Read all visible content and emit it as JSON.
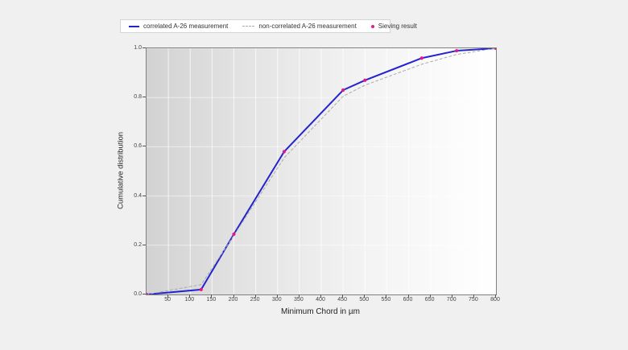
{
  "colors": {
    "page_background": "#f0f0f0",
    "correlated_line": "#2323cf",
    "non_correlated_line": "#aaaaaa",
    "sieving_dot": "#e8168c",
    "plot_border": "#7f7f7f",
    "gridline": "#ffffff"
  },
  "legend": {
    "items": [
      {
        "label": "correlated A-26 measurement",
        "marker": "solid-line",
        "color": "#2323cf"
      },
      {
        "label": "non-correlated A-26 measurement",
        "marker": "dashed-line",
        "color": "#aaaaaa"
      },
      {
        "label": "Sieving result",
        "marker": "dot",
        "color": "#e8168c"
      }
    ]
  },
  "chart_data": {
    "type": "line",
    "title": "",
    "xlabel": "Minimum Chord in µm",
    "ylabel": "Cumulative distribution",
    "xlim": [
      0,
      800
    ],
    "ylim": [
      0,
      1.0
    ],
    "x_ticks": [
      50,
      100,
      150,
      200,
      250,
      300,
      350,
      400,
      450,
      500,
      550,
      600,
      650,
      700,
      750,
      800
    ],
    "x_tick_labels": [
      "50",
      "100",
      "150",
      "200",
      "250",
      "300",
      "350",
      "400",
      "450",
      "500",
      "550",
      "600",
      "650",
      "700",
      "750",
      "800"
    ],
    "y_ticks": [
      0.0,
      0.2,
      0.4,
      0.6,
      0.8,
      1.0
    ],
    "y_tick_labels": [
      "0.0",
      "0.2",
      "0.4",
      "0.6",
      "0.8",
      "1.0"
    ],
    "grid": true,
    "legend_position": "top",
    "series": [
      {
        "name": "correlated A-26 measurement",
        "render": "line",
        "style": "solid",
        "color": "#2323cf",
        "x": [
          0,
          125,
          200,
          315,
          450,
          500,
          630,
          710,
          800
        ],
        "y": [
          0.0,
          0.02,
          0.245,
          0.58,
          0.83,
          0.87,
          0.96,
          0.99,
          1.0
        ]
      },
      {
        "name": "non-correlated A-26 measurement",
        "render": "line",
        "style": "dashed",
        "color": "#aaaaaa",
        "x": [
          0,
          125,
          200,
          315,
          450,
          500,
          630,
          710,
          800
        ],
        "y": [
          0.0,
          0.04,
          0.24,
          0.555,
          0.805,
          0.85,
          0.935,
          0.975,
          1.0
        ]
      },
      {
        "name": "Sieving result",
        "render": "scatter",
        "color": "#e8168c",
        "x": [
          0,
          125,
          200,
          315,
          450,
          500,
          630,
          710,
          800
        ],
        "y": [
          0.0,
          0.02,
          0.245,
          0.58,
          0.83,
          0.87,
          0.96,
          0.99,
          1.0
        ]
      }
    ]
  }
}
